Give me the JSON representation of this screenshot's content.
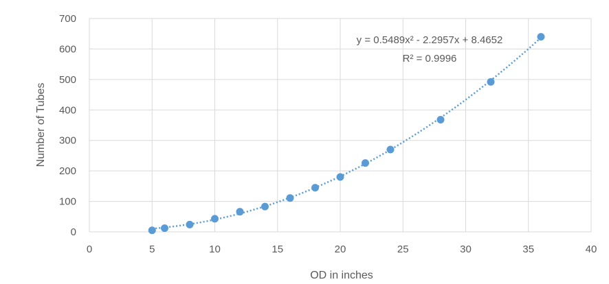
{
  "chart_data": {
    "type": "scatter",
    "xlabel": "OD in inches",
    "ylabel": "Number  of Tubes",
    "xlim": [
      0,
      40
    ],
    "ylim": [
      0,
      700
    ],
    "xticks": [
      "0",
      "5",
      "10",
      "15",
      "20",
      "25",
      "30",
      "35",
      "40"
    ],
    "yticks": [
      "0",
      "100",
      "200",
      "300",
      "400",
      "500",
      "600",
      "700"
    ],
    "grid": true,
    "series": [
      {
        "x": [
          5,
          6,
          8,
          10,
          12,
          14,
          16,
          18,
          20,
          22,
          24,
          28,
          32,
          36
        ],
        "y": [
          5,
          12,
          24,
          43,
          66,
          83,
          111,
          145,
          180,
          226,
          270,
          368,
          492,
          640
        ]
      }
    ],
    "trendline": {
      "type": "polynomial",
      "coefficients": [
        0.5489,
        -2.2957,
        8.4652
      ],
      "equation": "y = 0.5489x² - 2.2957x + 8.4652",
      "r_squared": "R² = 0.9996"
    },
    "colors": {
      "marker": "#5b9bd5",
      "grid": "#d9d9d9",
      "text": "#595959"
    }
  }
}
